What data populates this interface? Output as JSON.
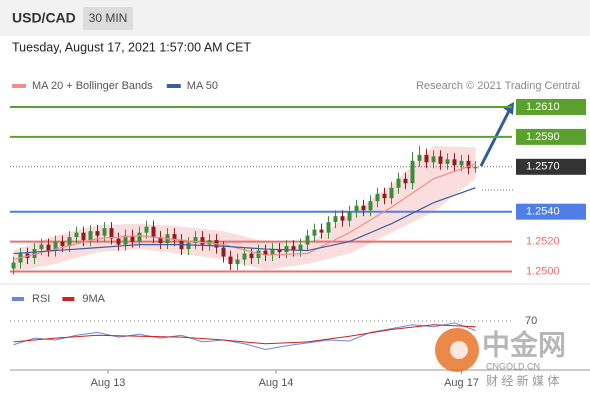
{
  "header": {
    "symbol": "USD/CAD",
    "timeframe": "30 MIN",
    "date": "Tuesday, August 17, 2021 1:57:00 AM CET",
    "credit": "Research © 2021 Trading Central"
  },
  "watermark": {
    "brand": "中金网",
    "site": "CNGOLD.CN",
    "tagline": "财 经 新 媒 体"
  },
  "chart_data": [
    {
      "type": "candlestick",
      "up_color": "#3b8c3b",
      "down_color": "#8e1c1c",
      "xlim": [
        -0.5,
        66.5
      ],
      "xticks": [
        {
          "value": 13.5,
          "label": "Aug 13"
        },
        {
          "value": 37.5,
          "label": "Aug 14"
        },
        {
          "value": 64,
          "label": "Aug 17"
        }
      ],
      "ylim": [
        1.2493,
        1.2618
      ],
      "open": [
        1.2502,
        1.2506,
        1.2512,
        1.2509,
        1.2515,
        1.2518,
        1.2514,
        1.252,
        1.2517,
        1.2523,
        1.2526,
        1.2521,
        1.2527,
        1.2524,
        1.2529,
        1.2522,
        1.2518,
        1.2524,
        1.252,
        1.2526,
        1.253,
        1.2523,
        1.2519,
        1.2525,
        1.2521,
        1.2515,
        1.2519,
        1.2523,
        1.2518,
        1.2521,
        1.2516,
        1.251,
        1.2505,
        1.2508,
        1.2512,
        1.2509,
        1.2514,
        1.2511,
        1.2515,
        1.2513,
        1.2517,
        1.2514,
        1.2518,
        1.2524,
        1.2528,
        1.2526,
        1.2533,
        1.2537,
        1.2534,
        1.254,
        1.2544,
        1.2541,
        1.2547,
        1.2552,
        1.2549,
        1.2556,
        1.2562,
        1.2559,
        1.2574,
        1.2578,
        1.2573,
        1.2577,
        1.2572,
        1.2575,
        1.2571,
        1.2574,
        1.2569
      ],
      "high": [
        1.251,
        1.2516,
        1.2516,
        1.2519,
        1.2522,
        1.2522,
        1.2524,
        1.2524,
        1.2527,
        1.253,
        1.253,
        1.2531,
        1.2531,
        1.2533,
        1.2533,
        1.2526,
        1.2528,
        1.2528,
        1.253,
        1.2534,
        1.2534,
        1.2527,
        1.2529,
        1.2529,
        1.2525,
        1.2523,
        1.2527,
        1.2527,
        1.2525,
        1.2525,
        1.252,
        1.2514,
        1.2512,
        1.2516,
        1.2516,
        1.2518,
        1.2518,
        1.2519,
        1.2519,
        1.2521,
        1.2521,
        1.2522,
        1.2528,
        1.2532,
        1.2532,
        1.2537,
        1.2541,
        1.2541,
        1.2544,
        1.2548,
        1.2548,
        1.2551,
        1.2556,
        1.2556,
        1.256,
        1.2566,
        1.2566,
        1.258,
        1.2584,
        1.2582,
        1.2581,
        1.2581,
        1.2579,
        1.2579,
        1.2578,
        1.2578,
        1.2574
      ],
      "low": [
        1.2498,
        1.2502,
        1.2505,
        1.2505,
        1.2511,
        1.251,
        1.251,
        1.2513,
        1.2513,
        1.2519,
        1.2517,
        1.2517,
        1.252,
        1.252,
        1.2518,
        1.2514,
        1.2514,
        1.2516,
        1.2516,
        1.2522,
        1.2519,
        1.2515,
        1.2515,
        1.2517,
        1.2511,
        1.2511,
        1.2515,
        1.2514,
        1.2514,
        1.2512,
        1.2506,
        1.2501,
        1.2501,
        1.2504,
        1.2505,
        1.2505,
        1.2507,
        1.2507,
        1.2509,
        1.2509,
        1.251,
        1.251,
        1.2514,
        1.252,
        1.2522,
        1.2522,
        1.2529,
        1.253,
        1.253,
        1.2536,
        1.2537,
        1.2537,
        1.2543,
        1.2545,
        1.2545,
        1.2552,
        1.2555,
        1.2555,
        1.257,
        1.2569,
        1.2569,
        1.2568,
        1.2568,
        1.2567,
        1.2567,
        1.2565,
        1.2566
      ],
      "close": [
        1.2506,
        1.2512,
        1.2509,
        1.2515,
        1.2518,
        1.2514,
        1.252,
        1.2517,
        1.2523,
        1.2526,
        1.2521,
        1.2527,
        1.2524,
        1.2529,
        1.2522,
        1.2518,
        1.2524,
        1.252,
        1.2526,
        1.253,
        1.2523,
        1.2519,
        1.2525,
        1.2521,
        1.2515,
        1.2519,
        1.2523,
        1.2518,
        1.2521,
        1.2516,
        1.251,
        1.2505,
        1.2508,
        1.2512,
        1.2509,
        1.2514,
        1.2511,
        1.2515,
        1.2513,
        1.2517,
        1.2514,
        1.2518,
        1.2524,
        1.2528,
        1.2526,
        1.2533,
        1.2537,
        1.2534,
        1.254,
        1.2544,
        1.2541,
        1.2547,
        1.2552,
        1.2549,
        1.2556,
        1.2562,
        1.2559,
        1.2574,
        1.2578,
        1.2573,
        1.2577,
        1.2572,
        1.2575,
        1.2571,
        1.2574,
        1.2569,
        1.257
      ],
      "series": [
        {
          "name": "MA 20 + Bollinger Bands",
          "color": "#f08c8c",
          "band_color": "#f9d4d4",
          "x": [
            0,
            6,
            12,
            18,
            24,
            30,
            36,
            42,
            48,
            54,
            60,
            66
          ],
          "values": [
            1.2508,
            1.2515,
            1.2522,
            1.2524,
            1.2521,
            1.2518,
            1.2511,
            1.2512,
            1.2526,
            1.2543,
            1.2562,
            1.2572
          ],
          "upper": [
            1.2514,
            1.2524,
            1.2531,
            1.2532,
            1.253,
            1.2527,
            1.252,
            1.2518,
            1.2538,
            1.2558,
            1.2584,
            1.2583
          ],
          "lower": [
            1.25,
            1.2505,
            1.2513,
            1.2515,
            1.2512,
            1.2508,
            1.2501,
            1.2505,
            1.2512,
            1.2526,
            1.254,
            1.2562
          ]
        },
        {
          "name": "MA 50",
          "color": "#3a5fa0",
          "x": [
            0,
            6,
            12,
            18,
            24,
            30,
            36,
            42,
            48,
            54,
            60,
            66
          ],
          "values": [
            1.2512,
            1.2514,
            1.2516,
            1.2518,
            1.2518,
            1.2517,
            1.2515,
            1.2514,
            1.252,
            1.2532,
            1.2546,
            1.2556
          ]
        }
      ],
      "levels": [
        {
          "value": 1.261,
          "label": "1.2610",
          "color": "#5aa02c",
          "boxed": true
        },
        {
          "value": 1.259,
          "label": "1.2590",
          "color": "#5aa02c",
          "boxed": true
        },
        {
          "value": 1.257,
          "label": "1.2570",
          "color": "#333333",
          "boxed": true,
          "dotted": true
        },
        {
          "value": 1.254,
          "label": "1.2540",
          "color": "#4f7fe6",
          "boxed": true
        },
        {
          "value": 1.252,
          "label": "1.2520",
          "color": "#e8706f",
          "boxed": false
        },
        {
          "value": 1.25,
          "label": "1.2500",
          "color": "#e8706f",
          "boxed": false
        }
      ]
    },
    {
      "type": "line",
      "xlim": [
        -0.5,
        66.5
      ],
      "ylim": [
        20,
        100
      ],
      "yticks": [
        70
      ],
      "series": [
        {
          "name": "RSI",
          "color": "#6b88d8",
          "x": [
            0,
            3,
            6,
            9,
            12,
            15,
            18,
            21,
            24,
            27,
            30,
            33,
            36,
            39,
            42,
            45,
            48,
            51,
            54,
            57,
            60,
            63,
            66
          ],
          "values": [
            45,
            52,
            50,
            55,
            58,
            53,
            56,
            52,
            55,
            48,
            50,
            46,
            40,
            44,
            47,
            50,
            49,
            58,
            62,
            66,
            64,
            68,
            60
          ]
        },
        {
          "name": "9MA",
          "color": "#cc2222",
          "x": [
            0,
            6,
            12,
            18,
            24,
            30,
            36,
            42,
            48,
            54,
            60,
            66
          ],
          "values": [
            48,
            52,
            55,
            54,
            53,
            50,
            46,
            48,
            54,
            61,
            66,
            64
          ]
        }
      ]
    }
  ]
}
